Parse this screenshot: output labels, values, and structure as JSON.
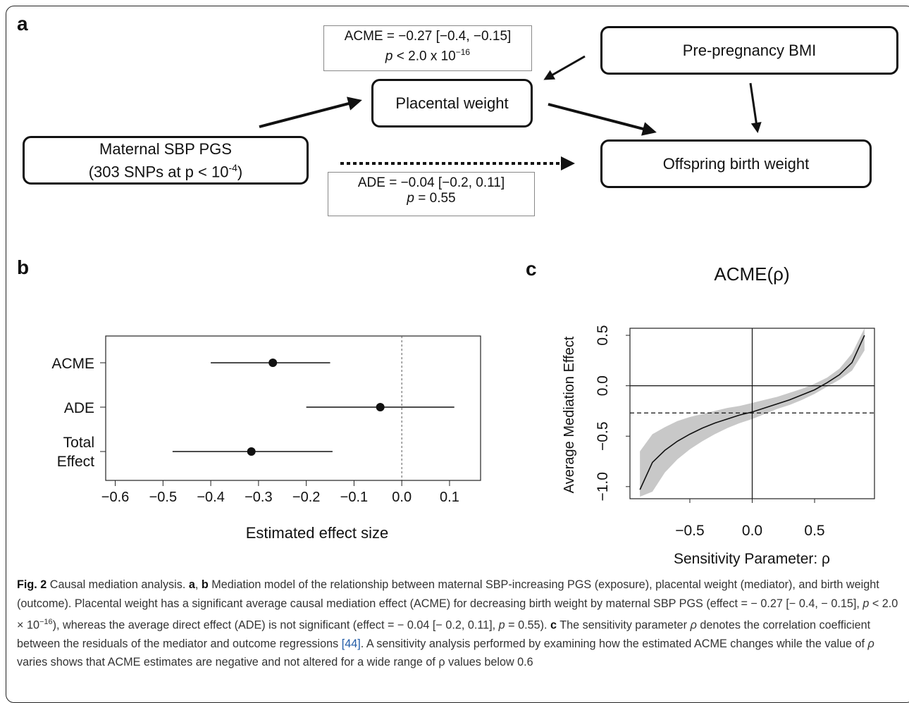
{
  "panels": {
    "a": "a",
    "b": "b",
    "c": "c"
  },
  "diagram": {
    "exposure_line1": "Maternal SBP PGS",
    "exposure_line2": "(303 SNPs at p < 10",
    "exposure_sup": "-4",
    "exposure_end": ")",
    "mediator": "Placental weight",
    "covariate": "Pre-pregnancy BMI",
    "outcome": "Offspring birth weight",
    "acme_line1": "ACME = −0.27 [−0.4, −0.15]",
    "acme_p_prefix": "p",
    "acme_p_text": " < 2.0 x 10",
    "acme_p_sup": "−16",
    "ade_line1": "ADE = −0.04 [−0.2, 0.11]",
    "ade_p_prefix": "p",
    "ade_p_text": " = 0.55"
  },
  "chart_data": [
    {
      "type": "scatter",
      "subtype": "forest",
      "xlabel": "Estimated effect size",
      "categories": [
        "ACME",
        "ADE",
        "Total Effect"
      ],
      "estimates": [
        -0.27,
        -0.045,
        -0.315
      ],
      "ci_low": [
        -0.4,
        -0.2,
        -0.48
      ],
      "ci_high": [
        -0.15,
        0.11,
        -0.145
      ],
      "xlim": [
        -0.6,
        0.1
      ],
      "xticks": [
        "−0.6",
        "−0.5",
        "−0.4",
        "−0.3",
        "−0.2",
        "−0.1",
        "0.0",
        "0.1"
      ],
      "reference_line": 0.0
    },
    {
      "type": "line",
      "title": "ACME(ρ)",
      "xlabel": "Sensitivity Parameter: ρ",
      "ylabel": "Average Mediation Effect",
      "xlim": [
        -0.9,
        1.0
      ],
      "ylim": [
        -1.1,
        0.6
      ],
      "xticks": [
        "−0.5",
        "0.0",
        "0.5"
      ],
      "yticks": [
        "−1.0",
        "−0.5",
        "0.0",
        "0.5"
      ],
      "x": [
        -0.9,
        -0.8,
        -0.7,
        -0.6,
        -0.5,
        -0.4,
        -0.3,
        -0.2,
        -0.1,
        0.0,
        0.1,
        0.2,
        0.3,
        0.4,
        0.5,
        0.6,
        0.7,
        0.8,
        0.9
      ],
      "y": [
        -1.03,
        -0.76,
        -0.64,
        -0.55,
        -0.48,
        -0.42,
        -0.37,
        -0.33,
        -0.29,
        -0.26,
        -0.22,
        -0.18,
        -0.14,
        -0.09,
        -0.04,
        0.03,
        0.11,
        0.23,
        0.5
      ],
      "ci_low": [
        -1.1,
        -1.05,
        -0.86,
        -0.73,
        -0.63,
        -0.55,
        -0.48,
        -0.42,
        -0.37,
        -0.33,
        -0.28,
        -0.23,
        -0.19,
        -0.14,
        -0.08,
        -0.01,
        0.06,
        0.15,
        0.35
      ],
      "ci_high": [
        -0.65,
        -0.48,
        -0.41,
        -0.35,
        -0.31,
        -0.28,
        -0.25,
        -0.22,
        -0.2,
        -0.17,
        -0.14,
        -0.11,
        -0.07,
        -0.03,
        0.02,
        0.08,
        0.17,
        0.32,
        0.6
      ],
      "hlines": [
        {
          "y": 0.0,
          "style": "solid"
        },
        {
          "y": -0.27,
          "style": "dashed"
        }
      ],
      "vlines": [
        {
          "x": 0.0,
          "style": "solid"
        }
      ]
    }
  ],
  "caption": {
    "fig_label": "Fig. 2",
    "s1": " Causal mediation analysis. ",
    "a": "a",
    "comma": ", ",
    "b": "b",
    "s2": " Mediation model of the relationship between maternal SBP-increasing PGS (exposure), placental weight (mediator), and birth weight (outcome). Placental weight has a significant average causal mediation effect (ACME) for decreasing birth weight by maternal SBP PGS (effect = − 0.27 [− 0.4, − 0.15], ",
    "p1": "p",
    "s3": " < 2.0 × 10",
    "sup": "−16",
    "s4": "), whereas the average direct effect (ADE) is not significant (effect = − 0.04 [− 0.2, 0.11], ",
    "p2": "p",
    "s5": " = 0.55). ",
    "c": "c",
    "s6": " The sensitivity parameter ",
    "rho": "ρ",
    "s7": " denotes the correlation coefficient between the residuals of the mediator and outcome regressions ",
    "ref": "[44]",
    "s8": ". A sensitivity analysis performed by examining how the estimated ACME changes while the value of ",
    "rho2": "ρ",
    "s9": " varies shows that ACME estimates are negative and not altered for a wide range of ρ values below 0.6"
  }
}
